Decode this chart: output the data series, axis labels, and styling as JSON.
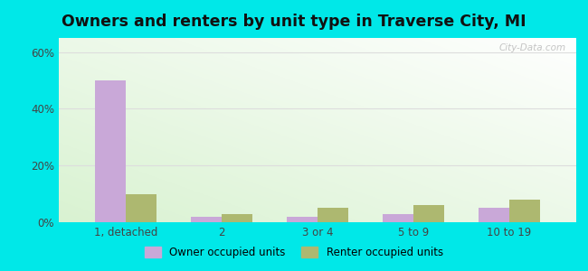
{
  "title": "Owners and renters by unit type in Traverse City, MI",
  "categories": [
    "1, detached",
    "2",
    "3 or 4",
    "5 to 9",
    "10 to 19"
  ],
  "owner_values": [
    50,
    2,
    2,
    3,
    5
  ],
  "renter_values": [
    10,
    3,
    5,
    6,
    8
  ],
  "owner_color": "#c9a8d8",
  "renter_color": "#adb870",
  "bar_width": 0.32,
  "ylim": [
    0,
    65
  ],
  "yticks": [
    0,
    20,
    40,
    60
  ],
  "ytick_labels": [
    "0%",
    "20%",
    "40%",
    "60%"
  ],
  "title_fontsize": 12.5,
  "legend_owner": "Owner occupied units",
  "legend_renter": "Renter occupied units",
  "outer_bg": "#00e8e8",
  "watermark": "City-Data.com"
}
